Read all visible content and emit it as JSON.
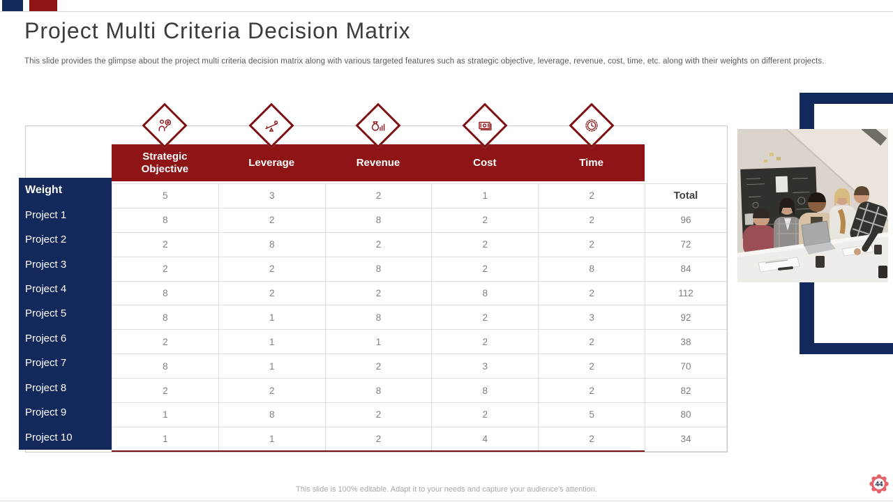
{
  "slide": {
    "title": "Project Multi Criteria Decision Matrix",
    "subtitle": "This slide provides the glimpse about the project multi criteria decision matrix along with various targeted features such as strategic objective, leverage, revenue, cost, time, etc. along with their weights on different projects.",
    "footer": "This slide is 100% editable. Adapt it to your needs and capture your audience's attention.",
    "page_number": "44"
  },
  "colors": {
    "navy": "#13295B",
    "maroon": "#8E1416",
    "dark_red_border": "#7E1113",
    "gear_badge": "#E5646B",
    "grid_line": "#DFDFDF",
    "cell_text": "#7F7F7F"
  },
  "matrix": {
    "criteria": [
      {
        "label": "Strategic Objective",
        "icon": "strategic-objective-icon"
      },
      {
        "label": "Leverage",
        "icon": "leverage-icon"
      },
      {
        "label": "Revenue",
        "icon": "revenue-icon"
      },
      {
        "label": "Cost",
        "icon": "cost-icon"
      },
      {
        "label": "Time",
        "icon": "time-icon"
      }
    ],
    "weight_row": {
      "label": "Weight",
      "values": [
        5,
        3,
        2,
        1,
        2
      ],
      "total_label": "Total"
    },
    "projects": [
      {
        "label": "Project 1",
        "values": [
          8,
          2,
          8,
          2,
          2
        ],
        "total": 96
      },
      {
        "label": "Project 2",
        "values": [
          2,
          8,
          2,
          2,
          2
        ],
        "total": 72
      },
      {
        "label": "Project 3",
        "values": [
          2,
          2,
          8,
          2,
          8
        ],
        "total": 84
      },
      {
        "label": "Project 4",
        "values": [
          8,
          2,
          2,
          8,
          2
        ],
        "total": 112
      },
      {
        "label": "Project 5",
        "values": [
          8,
          1,
          8,
          2,
          3
        ],
        "total": 92
      },
      {
        "label": "Project 6",
        "values": [
          2,
          1,
          1,
          2,
          2
        ],
        "total": 38
      },
      {
        "label": "Project 7",
        "values": [
          8,
          1,
          2,
          3,
          2
        ],
        "total": 70
      },
      {
        "label": "Project 8",
        "values": [
          2,
          2,
          8,
          8,
          2
        ],
        "total": 82
      },
      {
        "label": "Project 9",
        "values": [
          1,
          8,
          2,
          2,
          5
        ],
        "total": 80
      },
      {
        "label": "Project 10",
        "values": [
          1,
          1,
          2,
          4,
          2
        ],
        "total": 34
      }
    ]
  }
}
